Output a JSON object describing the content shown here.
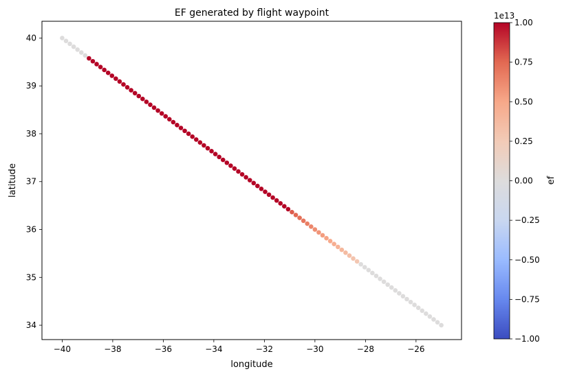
{
  "chart_data": {
    "type": "scatter",
    "title": "EF generated by flight waypoint",
    "xlabel": "longitude",
    "ylabel": "latitude",
    "xlim": [
      -40.8,
      -24.2
    ],
    "ylim": [
      33.7,
      40.35
    ],
    "xticks": [
      -40,
      -38,
      -36,
      -34,
      -32,
      -30,
      -28,
      -26
    ],
    "xtick_labels": [
      "−40",
      "−38",
      "−36",
      "−34",
      "−32",
      "−30",
      "−28",
      "−26"
    ],
    "yticks": [
      34,
      35,
      36,
      37,
      38,
      39,
      40
    ],
    "ytick_labels": [
      "34",
      "35",
      "36",
      "37",
      "38",
      "39",
      "40"
    ],
    "grid": false,
    "colormap": "coolwarm",
    "series": [
      {
        "start": [
          -40,
          40
        ],
        "end": [
          -25,
          34
        ],
        "n_points": 100,
        "ef_profile": [
          {
            "from_lon": -40.0,
            "to_lon": -39.0,
            "ef": 0
          },
          {
            "from_lon": -39.0,
            "to_lon": -31.0,
            "ef": 10000000000000.0
          },
          {
            "from_lon": -31.0,
            "to_lon": -28.2,
            "ef": [
              8000000000000.0,
              2500000000000.0
            ]
          },
          {
            "from_lon": -28.2,
            "to_lon": -25.0,
            "ef": 0
          }
        ]
      }
    ],
    "colorbar": {
      "label": "ef",
      "offset_text": "1e13",
      "min": -1.0,
      "max": 1.0,
      "ticks": [
        -1.0,
        -0.75,
        -0.5,
        -0.25,
        0.0,
        0.25,
        0.5,
        0.75,
        1.0
      ],
      "tick_labels": [
        "−1.00",
        "−0.75",
        "−0.50",
        "−0.25",
        "0.00",
        "0.25",
        "0.50",
        "0.75",
        "1.00"
      ],
      "stops": [
        "#3b4cc0",
        "#6788ee",
        "#9abbff",
        "#c9d7f0",
        "#dddcdc",
        "#f2cbb7",
        "#f7a889",
        "#e26952",
        "#b40426"
      ]
    }
  }
}
